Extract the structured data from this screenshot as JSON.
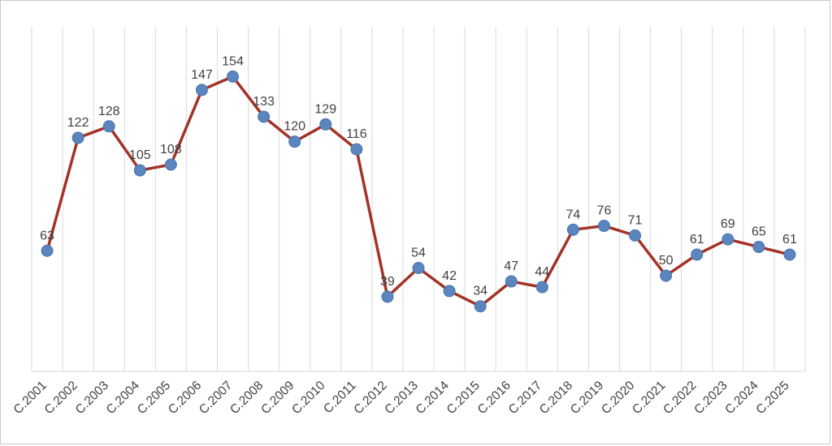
{
  "chart_data": {
    "type": "line",
    "title": "",
    "xlabel": "",
    "ylabel": "",
    "categories": [
      "C.2001",
      "C.2002",
      "C.2003",
      "C.2004",
      "C.2005",
      "C.2006",
      "C.2007",
      "C.2008",
      "C.2009",
      "C.2010",
      "C.2011",
      "C.2012",
      "C.2013",
      "C.2014",
      "C.2015",
      "C.2016",
      "C.2017",
      "C.2018",
      "C.2019",
      "C.2020",
      "C.2021",
      "C.2022",
      "C.2023",
      "C.2024",
      "C.2025"
    ],
    "values": [
      63,
      122,
      128,
      105,
      108,
      147,
      154,
      133,
      120,
      129,
      116,
      39,
      54,
      42,
      34,
      47,
      44,
      74,
      76,
      71,
      50,
      61,
      69,
      65,
      61
    ],
    "ylim": [
      0,
      180
    ],
    "grid": "vertical-only",
    "legend": "none",
    "data_labels": "above-points",
    "colors": {
      "line": "#a33327",
      "marker": "#5a85bf",
      "marker_edge": "#4a75ad",
      "value_label": "#404040",
      "axis_label": "#404040",
      "gridline": "#d9d9d9",
      "axis_line": "#d9d9d9",
      "background": "#ffffff",
      "frame_border": "#c9c9c9"
    }
  }
}
